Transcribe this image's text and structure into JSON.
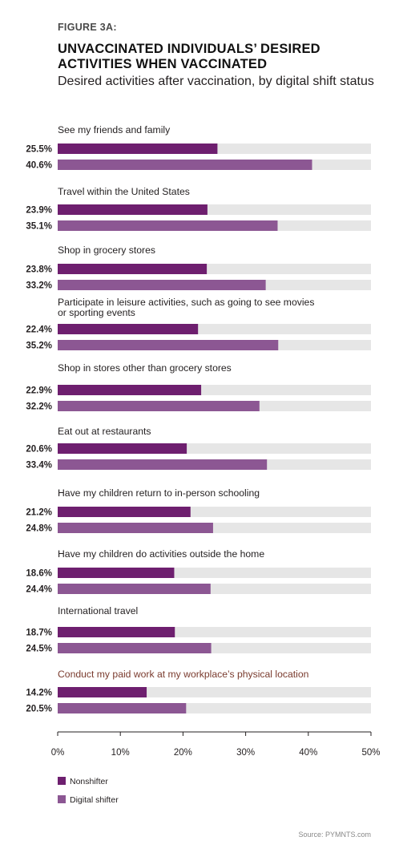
{
  "figure_label": "FIGURE 3A:",
  "title": "UNVACCINATED INDIVIDUALS’ DESIRED ACTIVITIES WHEN VACCINATED",
  "subtitle": "Desired activities after vaccination, by digital shift status",
  "source": "Source: PYMNTS.com",
  "colors": {
    "nonshifter": "#6e1f6f",
    "digital_shifter": "#8c5793",
    "track": "#e6e6e6",
    "highlight_label": "#7a3b2e"
  },
  "chart_data": {
    "type": "bar",
    "orientation": "horizontal",
    "categories": [
      "See my friends and family",
      "Travel within the United States",
      "Shop in grocery stores",
      "Participate in leisure activities, such as going to see movies or sporting events",
      "Shop in stores other than grocery stores",
      "Eat out at restaurants",
      "Have my children return to in-person schooling",
      "Have my children do activities outside the home",
      "International travel",
      "Conduct my paid work at my workplace’s physical location"
    ],
    "series": [
      {
        "name": "Nonshifter",
        "values": [
          25.5,
          23.9,
          23.8,
          22.4,
          22.9,
          20.6,
          21.2,
          18.6,
          18.7,
          14.2
        ]
      },
      {
        "name": "Digital shifter",
        "values": [
          40.6,
          35.1,
          33.2,
          35.2,
          32.2,
          33.4,
          24.8,
          24.4,
          24.5,
          20.5
        ]
      }
    ],
    "value_labels": [
      [
        "25.5%",
        "23.9%",
        "23.8%",
        "22.4%",
        "22.9%",
        "20.6%",
        "21.2%",
        "18.6%",
        "18.7%",
        "14.2%"
      ],
      [
        "40.6%",
        "35.1%",
        "33.2%",
        "35.2%",
        "32.2%",
        "33.4%",
        "24.8%",
        "24.4%",
        "24.5%",
        "20.5%"
      ]
    ],
    "highlighted_category": "Conduct my paid work at my workplace’s physical location",
    "xlim": [
      0,
      50
    ],
    "x_ticks": [
      0,
      10,
      20,
      30,
      40,
      50
    ],
    "x_tick_labels": [
      "0%",
      "10%",
      "20%",
      "30%",
      "40%",
      "50%"
    ],
    "legend": [
      "Nonshifter",
      "Digital shifter"
    ],
    "legend_position": "bottom-left",
    "grid": false
  }
}
